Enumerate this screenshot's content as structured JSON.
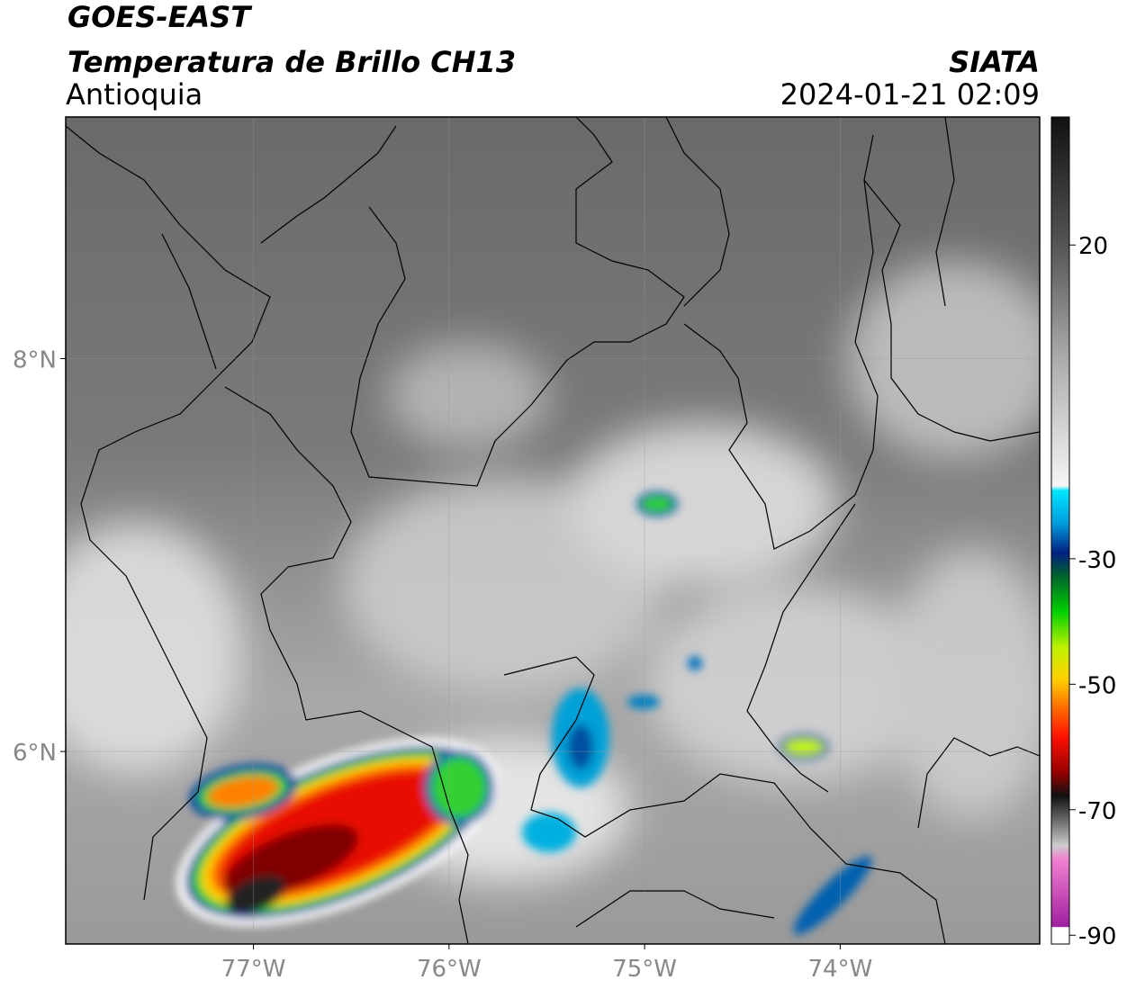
{
  "header": {
    "satellite": "GOES-EAST",
    "product": "Temperatura de Brillo CH13",
    "region": "Antioquia",
    "agency": "SIATA",
    "datetime": "2024-01-21 02:09"
  },
  "map": {
    "xlim": [
      -77.96,
      -72.98
    ],
    "ylim": [
      5.02,
      9.23
    ],
    "xticks": [
      {
        "value": -77,
        "label": "77°W"
      },
      {
        "value": -76,
        "label": "76°W"
      },
      {
        "value": -75,
        "label": "75°W"
      },
      {
        "value": -74,
        "label": "74°W"
      }
    ],
    "yticks": [
      {
        "value": 6,
        "label": "6°N"
      },
      {
        "value": 8,
        "label": "8°N"
      }
    ],
    "grid": true
  },
  "colorbar": {
    "lim": [
      -91.4,
      40.4
    ],
    "ticks": [
      20,
      -30,
      -50,
      -70,
      -90
    ]
  }
}
